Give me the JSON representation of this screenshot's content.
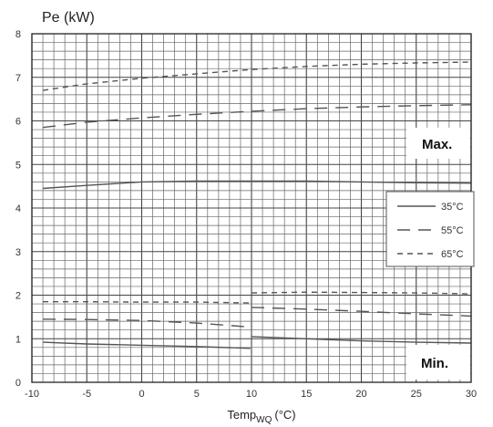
{
  "chart_data": {
    "type": "line",
    "ylabel": "Pe (kW)",
    "xlabel_main": "Temp",
    "xlabel_sub": "WQ",
    "xlabel_unit": "(°C)",
    "xlim": [
      -10,
      30
    ],
    "ylim": [
      0,
      8
    ],
    "x_ticks": [
      -10,
      -5,
      0,
      5,
      10,
      15,
      20,
      25,
      30
    ],
    "y_ticks": [
      0,
      1,
      2,
      3,
      4,
      5,
      6,
      7,
      8
    ],
    "grid": true,
    "legend_position": "right",
    "annotations": [
      "Max.",
      "Min."
    ],
    "series": [
      {
        "name": "35°C",
        "style": "solid",
        "group": "max",
        "points": [
          [
            -9,
            4.45
          ],
          [
            -5,
            4.52
          ],
          [
            0,
            4.6
          ],
          [
            5,
            4.62
          ],
          [
            10,
            4.62
          ],
          [
            15,
            4.62
          ],
          [
            20,
            4.6
          ],
          [
            25,
            4.58
          ],
          [
            30,
            4.57
          ]
        ]
      },
      {
        "name": "55°C",
        "style": "longdash",
        "group": "max",
        "points": [
          [
            -9,
            5.85
          ],
          [
            -5,
            5.97
          ],
          [
            0,
            6.07
          ],
          [
            5,
            6.15
          ],
          [
            10,
            6.22
          ],
          [
            15,
            6.28
          ],
          [
            20,
            6.32
          ],
          [
            25,
            6.35
          ],
          [
            30,
            6.37
          ]
        ]
      },
      {
        "name": "65°C",
        "style": "dash",
        "group": "max",
        "points": [
          [
            -9,
            6.7
          ],
          [
            -5,
            6.85
          ],
          [
            0,
            6.98
          ],
          [
            5,
            7.08
          ],
          [
            10,
            7.18
          ],
          [
            15,
            7.25
          ],
          [
            20,
            7.3
          ],
          [
            25,
            7.33
          ],
          [
            30,
            7.35
          ]
        ]
      },
      {
        "name": "35°C",
        "style": "solid",
        "group": "min",
        "points": [
          [
            -9,
            0.92
          ],
          [
            -5,
            0.88
          ],
          [
            0,
            0.85
          ],
          [
            5,
            0.82
          ],
          [
            9.9,
            0.78
          ],
          [
            10,
            1.05
          ],
          [
            15,
            1.0
          ],
          [
            20,
            0.95
          ],
          [
            25,
            0.92
          ],
          [
            30,
            0.9
          ]
        ]
      },
      {
        "name": "55°C",
        "style": "longdash",
        "group": "min",
        "points": [
          [
            -9,
            1.45
          ],
          [
            -5,
            1.44
          ],
          [
            0,
            1.42
          ],
          [
            5,
            1.36
          ],
          [
            9.9,
            1.27
          ],
          [
            10,
            1.72
          ],
          [
            15,
            1.68
          ],
          [
            20,
            1.63
          ],
          [
            25,
            1.57
          ],
          [
            30,
            1.52
          ]
        ]
      },
      {
        "name": "65°C",
        "style": "dash",
        "group": "min",
        "points": [
          [
            -9,
            1.85
          ],
          [
            -5,
            1.85
          ],
          [
            0,
            1.84
          ],
          [
            5,
            1.84
          ],
          [
            9.9,
            1.82
          ],
          [
            10,
            2.05
          ],
          [
            15,
            2.07
          ],
          [
            20,
            2.06
          ],
          [
            25,
            2.05
          ],
          [
            30,
            2.03
          ]
        ]
      }
    ],
    "legend": [
      {
        "name": "35°C",
        "style": "solid"
      },
      {
        "name": "55°C",
        "style": "longdash"
      },
      {
        "name": "65°C",
        "style": "dash"
      }
    ]
  }
}
